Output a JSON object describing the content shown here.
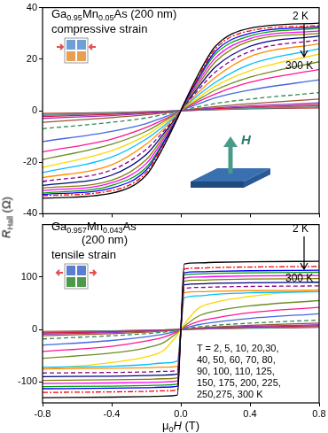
{
  "chart_data": [
    {
      "type": "line",
      "title": "Ga0.95Mn0.05As (200 nm)",
      "subtitle": "compressive strain",
      "annotations": [
        "2 K",
        "300 K"
      ],
      "field_label": "H",
      "y_label": {
        "symbol": "R",
        "subscript": "Hall",
        "unit": "(Ω)"
      },
      "xlim": [
        -0.8,
        0.8
      ],
      "xticks": [
        -0.8,
        -0.4,
        {
          "value": 0,
          "label": "0.0"
        },
        0.4,
        0.8
      ],
      "ylim": [
        -40,
        40
      ],
      "yticks": [
        -40,
        -20,
        0,
        20,
        40
      ],
      "grid": false,
      "tick_labels": "y",
      "x": [
        -0.8,
        -0.4,
        -0.2,
        -0.1,
        -0.02,
        0,
        0.02,
        0.1,
        0.2,
        0.4,
        0.8
      ],
      "series": [
        {
          "color": "#000000",
          "line_style": "solid",
          "values": [
            -34,
            -32,
            -25,
            -14,
            -3,
            0,
            3,
            14,
            25,
            32,
            34
          ]
        },
        {
          "color": "#ff0000",
          "line_style": "dashdot",
          "values": [
            -33,
            -31,
            -24,
            -13,
            -3,
            0,
            3,
            13,
            24,
            31,
            33
          ]
        },
        {
          "color": "#0000ff",
          "line_style": "solid",
          "values": [
            -32.5,
            -30,
            -23,
            -12.5,
            -2.8,
            0,
            2.8,
            12.5,
            23,
            30,
            32.5
          ]
        },
        {
          "color": "#00a000",
          "line_style": "solid",
          "values": [
            -32,
            -29,
            -22,
            -12,
            -2.6,
            0,
            2.6,
            12,
            22,
            29,
            32
          ]
        },
        {
          "color": "#ff00ff",
          "line_style": "solid",
          "values": [
            -31,
            -28,
            -20.5,
            -11,
            -2.4,
            0,
            2.4,
            11,
            20.5,
            28,
            31
          ]
        },
        {
          "color": "#808000",
          "line_style": "solid",
          "values": [
            -30,
            -27,
            -19,
            -10,
            -2.2,
            0,
            2.2,
            10,
            19,
            27,
            30
          ]
        },
        {
          "color": "#000080",
          "line_style": "solid",
          "values": [
            -29,
            -25,
            -17,
            -9,
            -2,
            0,
            2,
            9,
            17,
            25,
            29
          ]
        },
        {
          "color": "#8b008b",
          "line_style": "dashed",
          "values": [
            -27.5,
            -23,
            -15,
            -8,
            -1.8,
            0,
            1.8,
            8,
            15,
            23,
            27.5
          ]
        },
        {
          "color": "#ff8c00",
          "line_style": "solid",
          "values": [
            -26,
            -21,
            -13,
            -7,
            -1.6,
            0,
            1.6,
            7,
            13,
            21,
            26
          ]
        },
        {
          "color": "#00bfff",
          "line_style": "solid",
          "values": [
            -24,
            -18,
            -11,
            -6,
            -1.4,
            0,
            1.4,
            6,
            11,
            18,
            24
          ]
        },
        {
          "color": "#ffd700",
          "line_style": "solid",
          "values": [
            -22,
            -15.5,
            -9.5,
            -5,
            -1.2,
            0,
            1.2,
            5,
            9.5,
            15.5,
            22
          ]
        },
        {
          "color": "#6b8e23",
          "line_style": "solid",
          "values": [
            -19,
            -13,
            -8,
            -4.2,
            -1,
            0,
            1,
            4.2,
            8,
            13,
            19
          ]
        },
        {
          "color": "#ff1493",
          "line_style": "solid",
          "values": [
            -16,
            -11,
            -6.5,
            -3.5,
            -0.8,
            0,
            0.8,
            3.5,
            6.5,
            11,
            16
          ]
        },
        {
          "color": "#4169e1",
          "line_style": "solid",
          "values": [
            -12,
            -8,
            -5,
            -2.6,
            -0.6,
            0,
            0.6,
            2.6,
            5,
            8,
            12
          ]
        },
        {
          "color": "#2e8b57",
          "line_style": "dashed",
          "values": [
            -7,
            -4.5,
            -2.8,
            -1.5,
            -0.4,
            0,
            0.4,
            1.5,
            2.8,
            4.5,
            7
          ]
        },
        {
          "color": "#a0522d",
          "line_style": "solid",
          "values": [
            -4.5,
            -2.7,
            -1.6,
            -0.9,
            -0.2,
            0,
            0.2,
            0.9,
            1.6,
            2.7,
            4.5
          ]
        },
        {
          "color": "#9932cc",
          "line_style": "solid",
          "values": [
            -3,
            -1.9,
            -1.1,
            -0.6,
            -0.1,
            0,
            0.1,
            0.6,
            1.1,
            1.9,
            3
          ]
        },
        {
          "color": "#dc143c",
          "line_style": "solid",
          "values": [
            -2.3,
            -1.4,
            -0.8,
            -0.4,
            -0.1,
            0,
            0.1,
            0.4,
            0.8,
            1.4,
            2.3
          ]
        },
        {
          "color": "#808080",
          "line_style": "solid",
          "values": [
            -1.8,
            -1.1,
            -0.6,
            -0.3,
            -0.1,
            0,
            0.1,
            0.3,
            0.6,
            1.1,
            1.8
          ]
        },
        {
          "color": "#20b2aa",
          "line_style": "solid",
          "values": [
            -1.4,
            -0.9,
            -0.5,
            -0.25,
            0,
            0,
            0,
            0.25,
            0.5,
            0.9,
            1.4
          ]
        },
        {
          "color": "#b22222",
          "line_style": "solid",
          "values": [
            -1.1,
            -0.7,
            -0.4,
            -0.2,
            0,
            0,
            0,
            0.2,
            0.4,
            0.7,
            1.1
          ]
        }
      ]
    },
    {
      "type": "line",
      "title": [
        "Ga0.957Mn0.043As",
        "(200 nm)"
      ],
      "subtitle": "tensile strain",
      "annotations": [
        "2 K",
        "300 K"
      ],
      "temperature_list": [
        "T = 2, 5, 10, 20,30,",
        "40, 50, 60, 70, 80,",
        "90, 100, 110, 125,",
        "150, 175, 200, 225,",
        "250,275, 300 K"
      ],
      "x_label": {
        "symbol": "μ",
        "subscript": "0",
        "rest": "H",
        "unit": "(T)"
      },
      "xlim": [
        -0.8,
        0.8
      ],
      "xticks": [
        -0.8,
        -0.4,
        {
          "value": 0,
          "label": "0.0"
        },
        0.4,
        0.8
      ],
      "ylim": [
        -140,
        200
      ],
      "yticks": [
        -100,
        0,
        100
      ],
      "grid": false,
      "x": [
        -0.8,
        -0.4,
        -0.2,
        -0.1,
        -0.02,
        0,
        0.02,
        0.1,
        0.2,
        0.4,
        0.8
      ],
      "series": [
        {
          "color": "#000000",
          "line_style": "solid",
          "values": [
            -130,
            -129,
            -128,
            -127,
            -125,
            0,
            125,
            127,
            128,
            129,
            130
          ]
        },
        {
          "color": "#ff0000",
          "line_style": "dashdot",
          "values": [
            -120,
            -119,
            -118,
            -117,
            -115,
            0,
            115,
            117,
            118,
            119,
            120
          ]
        },
        {
          "color": "#0000ff",
          "line_style": "solid",
          "values": [
            -113,
            -112,
            -111,
            -110,
            -108,
            0,
            108,
            110,
            111,
            112,
            113
          ]
        },
        {
          "color": "#00a000",
          "line_style": "solid",
          "values": [
            -109,
            -108,
            -107,
            -106,
            -104,
            0,
            104,
            106,
            107,
            108,
            109
          ]
        },
        {
          "color": "#ff00ff",
          "line_style": "solid",
          "values": [
            -103,
            -102,
            -101,
            -100,
            -98,
            0,
            98,
            100,
            101,
            102,
            103
          ]
        },
        {
          "color": "#808000",
          "line_style": "solid",
          "values": [
            -97,
            -96,
            -95,
            -94,
            -92,
            0,
            92,
            94,
            95,
            96,
            97
          ]
        },
        {
          "color": "#000080",
          "line_style": "solid",
          "values": [
            -90,
            -89,
            -88,
            -87,
            -85,
            0,
            85,
            87,
            88,
            89,
            90
          ]
        },
        {
          "color": "#8b008b",
          "line_style": "dashed",
          "values": [
            -83,
            -82,
            -81,
            -80,
            -78,
            0,
            78,
            80,
            81,
            82,
            83
          ]
        },
        {
          "color": "#ff8c00",
          "line_style": "solid",
          "values": [
            -75,
            -74,
            -73,
            -72,
            -70,
            0,
            70,
            72,
            73,
            74,
            75
          ]
        },
        {
          "color": "#00bfff",
          "line_style": "solid",
          "values": [
            -72,
            -70,
            -67,
            -64,
            -60,
            0,
            60,
            64,
            67,
            70,
            72
          ]
        },
        {
          "color": "#ffd700",
          "line_style": "solid",
          "values": [
            -76,
            -63,
            -52,
            -40,
            -10,
            0,
            10,
            40,
            52,
            63,
            76
          ]
        },
        {
          "color": "#6b8e23",
          "line_style": "solid",
          "values": [
            -55,
            -45,
            -35,
            -25,
            -6,
            0,
            6,
            25,
            35,
            45,
            55
          ]
        },
        {
          "color": "#ff1493",
          "line_style": "solid",
          "values": [
            -42,
            -32,
            -22,
            -15,
            -4,
            0,
            4,
            15,
            22,
            32,
            42
          ]
        },
        {
          "color": "#4169e1",
          "line_style": "solid",
          "values": [
            -30,
            -21,
            -14,
            -9,
            -2.5,
            0,
            2.5,
            9,
            14,
            21,
            30
          ]
        },
        {
          "color": "#2e8b57",
          "line_style": "dashed",
          "values": [
            -18,
            -12,
            -8,
            -5,
            -1.2,
            0,
            1.2,
            5,
            8,
            12,
            18
          ]
        },
        {
          "color": "#a0522d",
          "line_style": "solid",
          "values": [
            -12,
            -8,
            -5,
            -3,
            -0.8,
            0,
            0.8,
            3,
            5,
            8,
            12
          ]
        },
        {
          "color": "#9932cc",
          "line_style": "solid",
          "values": [
            -9,
            -6,
            -3.5,
            -2,
            -0.5,
            0,
            0.5,
            2,
            3.5,
            6,
            9
          ]
        },
        {
          "color": "#dc143c",
          "line_style": "solid",
          "values": [
            -7,
            -4.5,
            -2.7,
            -1.5,
            -0.4,
            0,
            0.4,
            1.5,
            2.7,
            4.5,
            7
          ]
        },
        {
          "color": "#808080",
          "line_style": "solid",
          "values": [
            -5.5,
            -3.6,
            -2.2,
            -1.2,
            -0.3,
            0,
            0.3,
            1.2,
            2.2,
            3.6,
            5.5
          ]
        },
        {
          "color": "#20b2aa",
          "line_style": "solid",
          "values": [
            -4.5,
            -3,
            -1.8,
            -1,
            -0.2,
            0,
            0.2,
            1,
            1.8,
            3,
            4.5
          ]
        },
        {
          "color": "#b22222",
          "line_style": "solid",
          "values": [
            -4,
            -2.5,
            -1.5,
            -0.8,
            -0.2,
            0,
            0.2,
            0.8,
            1.5,
            2.5,
            4
          ]
        }
      ]
    }
  ]
}
